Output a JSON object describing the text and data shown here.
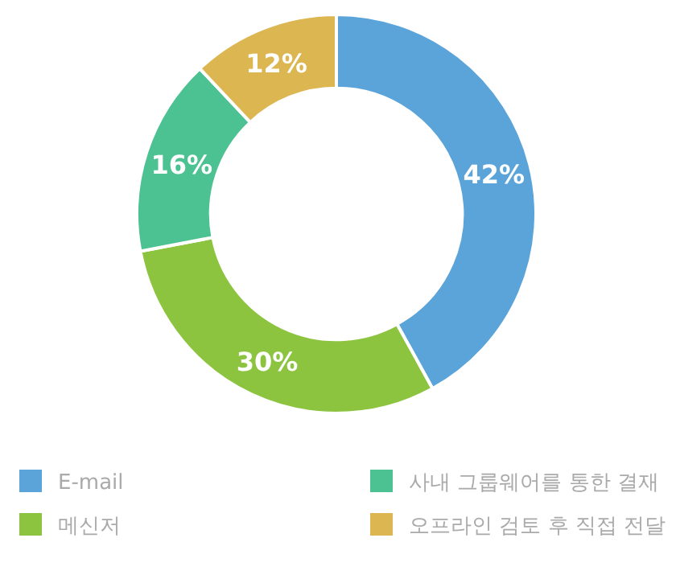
{
  "chart_data": {
    "type": "donut",
    "categories": [
      "E-mail",
      "메신저",
      "사내 그룹웨어를 통한 결재",
      "오프라인 검토 후 직접 전달"
    ],
    "values": [
      42,
      30,
      16,
      12
    ],
    "colors": [
      "#5ba4d9",
      "#8cc440",
      "#4cc292",
      "#dcb650"
    ],
    "value_labels": [
      "42%",
      "30%",
      "16%",
      "12%"
    ],
    "legend": "bottom"
  }
}
